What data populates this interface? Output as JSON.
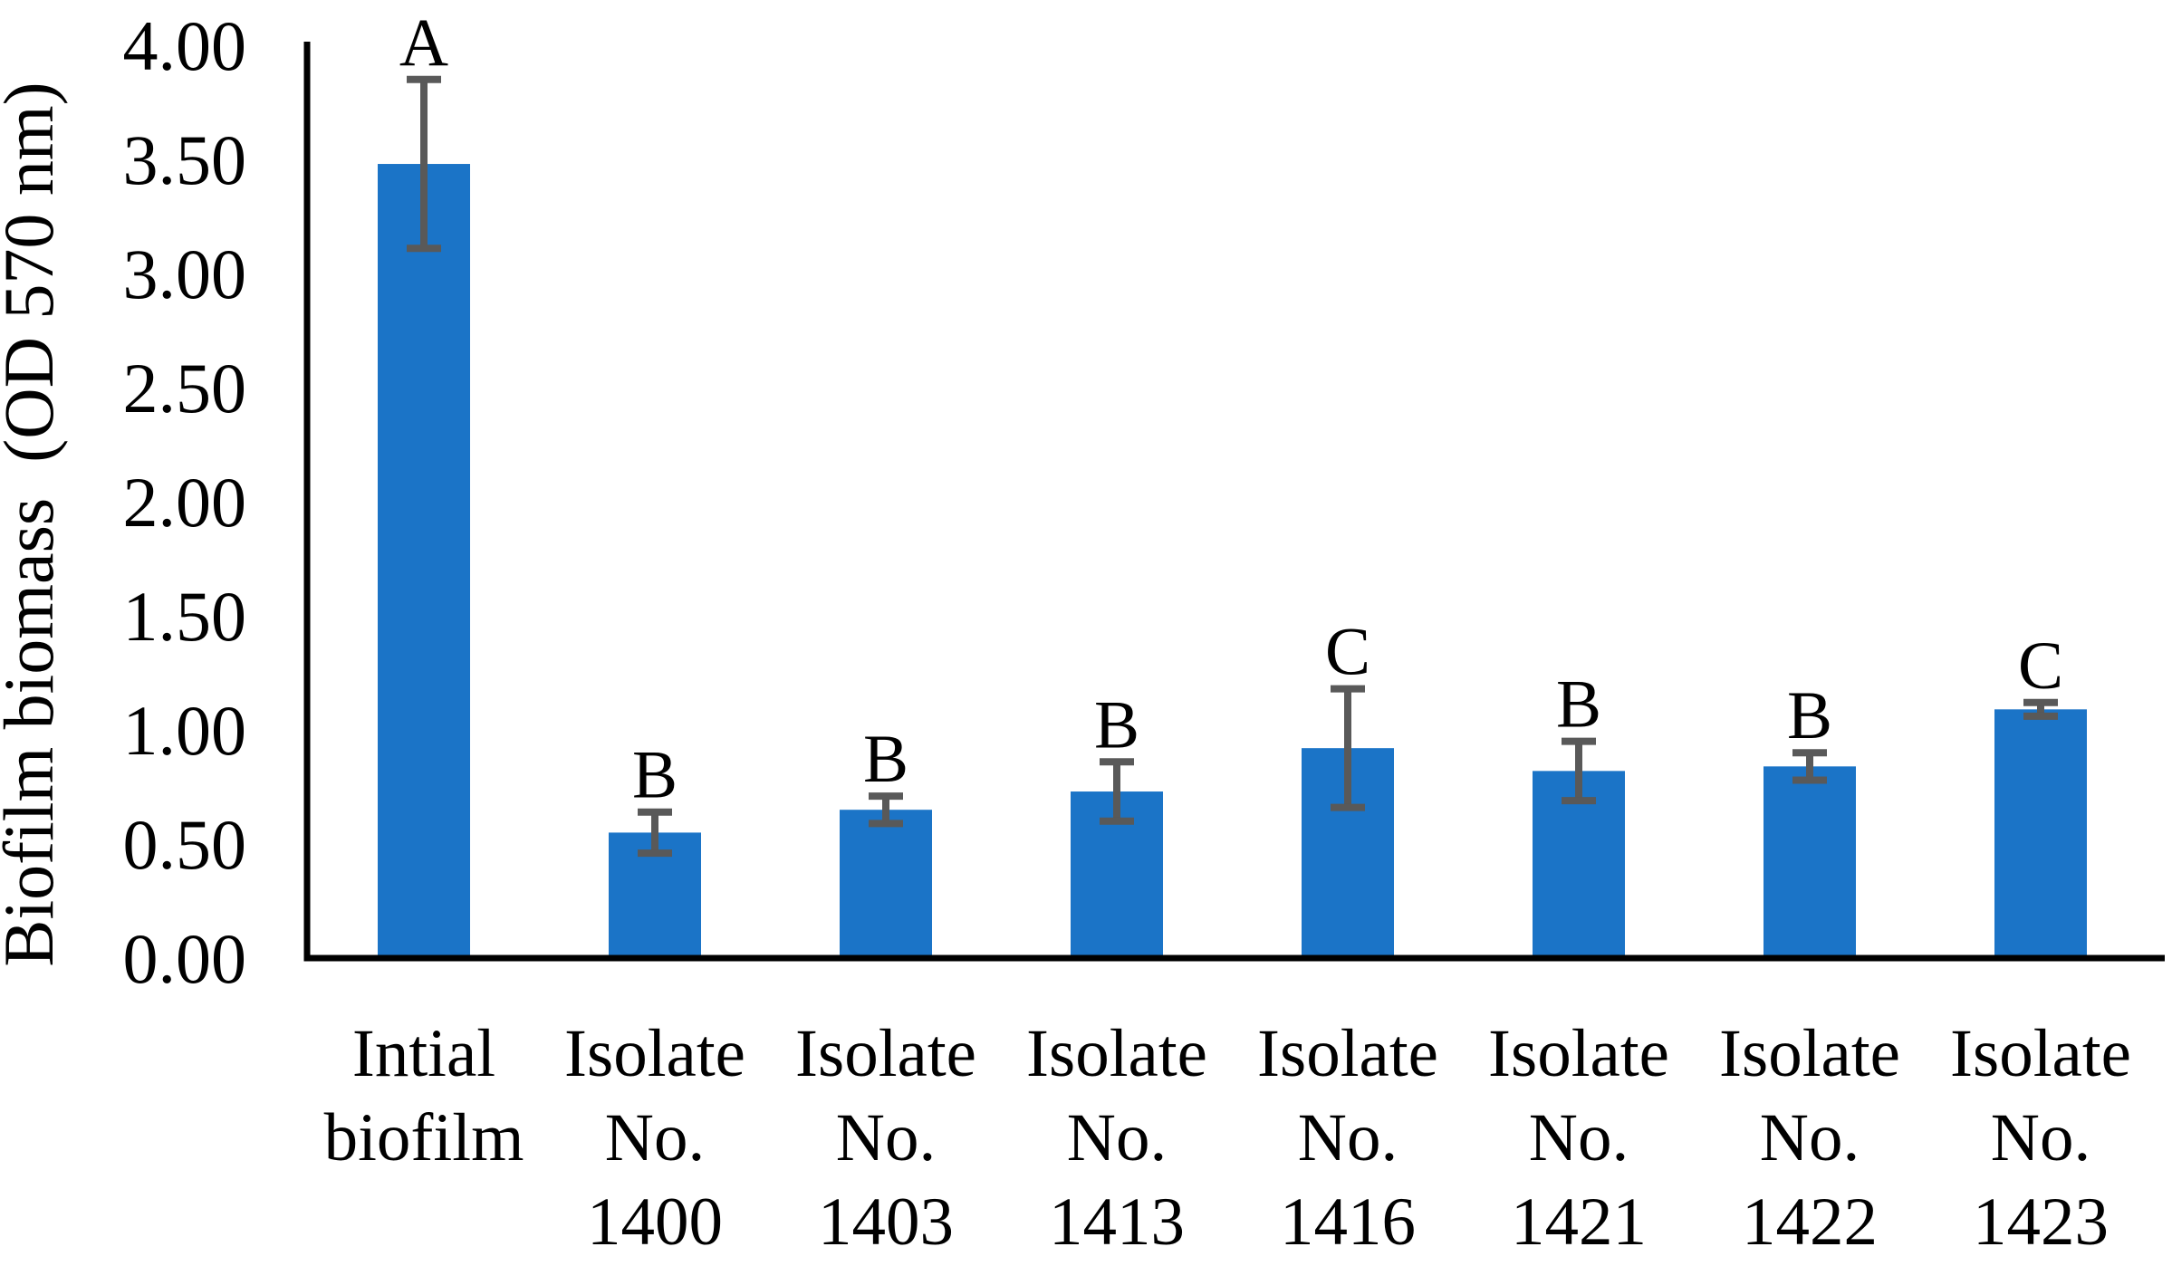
{
  "chart_data": {
    "type": "bar",
    "title": "",
    "xlabel": "",
    "ylabel": "Biofilm biomass  (OD 570 nm)",
    "ylim": [
      0,
      4
    ],
    "ytick_step": 0.5,
    "ytick_labels": [
      "0.00",
      "0.50",
      "1.00",
      "1.50",
      "2.00",
      "2.50",
      "3.00",
      "3.50",
      "4.00"
    ],
    "grid": false,
    "legend": "none",
    "bar_color": "#1b74c7",
    "error_bar_color": "#595959",
    "axis_color": "#000000",
    "categories": [
      [
        "Intial",
        "biofilm"
      ],
      [
        "Isolate",
        "No.",
        "1400"
      ],
      [
        "Isolate",
        "No.",
        "1403"
      ],
      [
        "Isolate",
        "No.",
        "1413"
      ],
      [
        "Isolate",
        "No.",
        "1416"
      ],
      [
        "Isolate",
        "No.",
        "1421"
      ],
      [
        "Isolate",
        "No.",
        "1422"
      ],
      [
        "Isolate",
        "No.",
        "1423"
      ]
    ],
    "values": [
      3.48,
      0.55,
      0.65,
      0.73,
      0.92,
      0.82,
      0.84,
      1.09
    ],
    "errors": [
      0.37,
      0.09,
      0.06,
      0.13,
      0.26,
      0.13,
      0.06,
      0.03
    ],
    "significance_letters": [
      "A",
      "B",
      "B",
      "B",
      "C",
      "B",
      "B",
      "C"
    ]
  }
}
